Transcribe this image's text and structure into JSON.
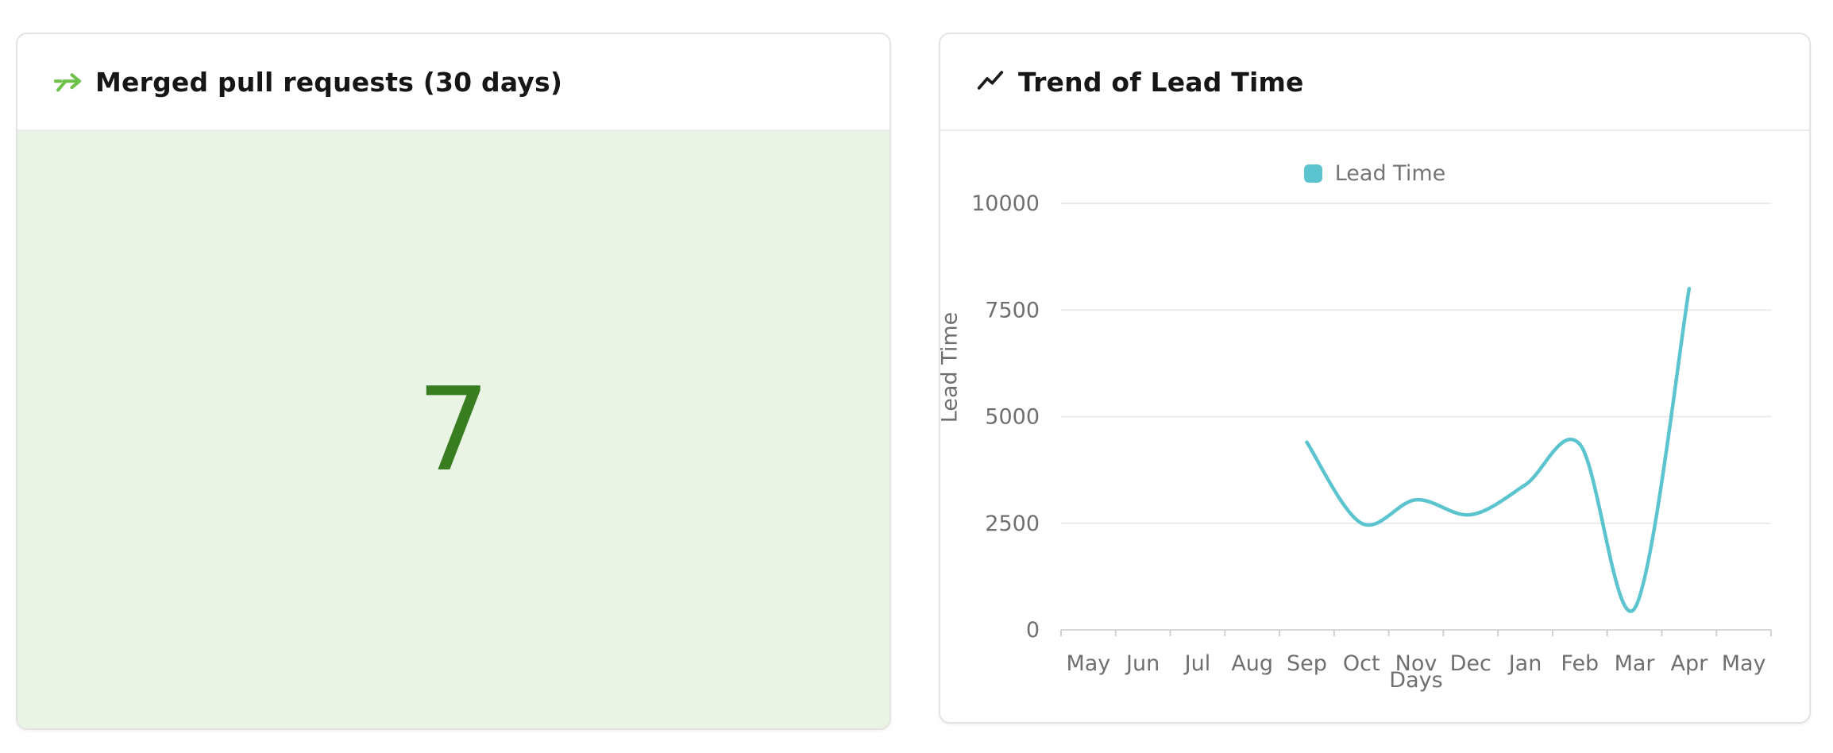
{
  "left_panel": {
    "title": "Merged pull requests (30 days)",
    "value": "7",
    "colors": {
      "body_bg": "#e9f4e5",
      "value": "#397d21",
      "icon": "#6ec24b"
    }
  },
  "right_panel": {
    "title": "Trend of Lead Time",
    "colors": {
      "icon": "#1c1c1c"
    }
  },
  "chart_data": {
    "type": "line",
    "title": "Trend of Lead Time",
    "categories": [
      "May",
      "Jun",
      "Jul",
      "Aug",
      "Sep",
      "Oct",
      "Nov",
      "Dec",
      "Jan",
      "Feb",
      "Mar",
      "Apr",
      "May"
    ],
    "series": [
      {
        "name": "Lead Time",
        "start_category_index": 4,
        "x": [
          "Sep",
          "Oct",
          "Nov",
          "Dec",
          "Jan",
          "Feb",
          "Mar",
          "Apr"
        ],
        "values": [
          4400,
          2500,
          3050,
          2700,
          3400,
          4350,
          500,
          8000
        ],
        "color": "#5bc4cf",
        "smooth": true
      }
    ],
    "xlabel": "Days",
    "ylabel": "Lead Time",
    "ylim": [
      0,
      10000
    ],
    "yticks": [
      0,
      2500,
      5000,
      7500,
      10000
    ],
    "legend": {
      "label": "Lead Time",
      "position": "top-center"
    },
    "grid": true,
    "colors": {
      "gridline": "#ebebeb",
      "axis_line": "#d8d8d8",
      "tick": "#cfcfcf",
      "axis_text": "#6f6f6f"
    }
  }
}
